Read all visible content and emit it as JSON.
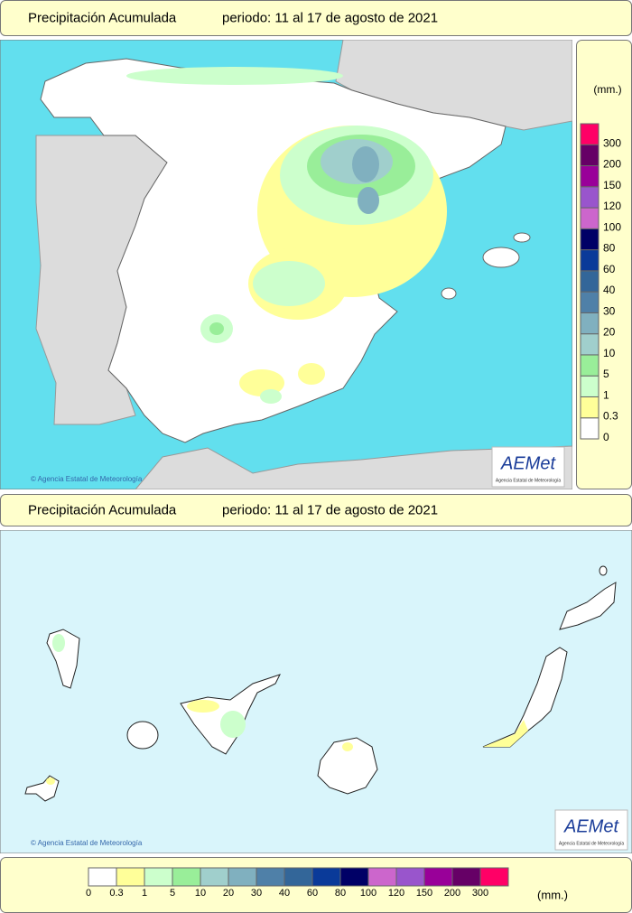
{
  "panels": [
    {
      "title": "Precipitación Acumulada",
      "period": "periodo: 11 al 17 de agosto de 2021",
      "credit": "© Agencia Estatal de Meteorología",
      "logo": "AEMet",
      "logo_caption": "Agencia Estatal de Meteorología"
    },
    {
      "title": "Precipitación Acumulada",
      "period": "periodo: 11 al 17 de agosto de 2021",
      "credit": "© Agencia Estatal de Meteorología",
      "logo": "AEMet",
      "logo_caption": "Agencia Estatal de Meteorología"
    }
  ],
  "legend": {
    "unit": "(mm.)",
    "classes": [
      {
        "label": "0",
        "color": "#ffffff"
      },
      {
        "label": "0.3",
        "color": "#ffff99"
      },
      {
        "label": "1",
        "color": "#ccffcc"
      },
      {
        "label": "5",
        "color": "#99ee99"
      },
      {
        "label": "10",
        "color": "#a0cfcc"
      },
      {
        "label": "20",
        "color": "#80b0bf"
      },
      {
        "label": "30",
        "color": "#4f80a8"
      },
      {
        "label": "40",
        "color": "#336699"
      },
      {
        "label": "60",
        "color": "#0a3a99"
      },
      {
        "label": "80",
        "color": "#000066"
      },
      {
        "label": "100",
        "color": "#cc66cc"
      },
      {
        "label": "120",
        "color": "#9955cc"
      },
      {
        "label": "150",
        "color": "#990099"
      },
      {
        "label": "200",
        "color": "#660066"
      },
      {
        "label": "300",
        "color": "#ff0066"
      }
    ]
  }
}
